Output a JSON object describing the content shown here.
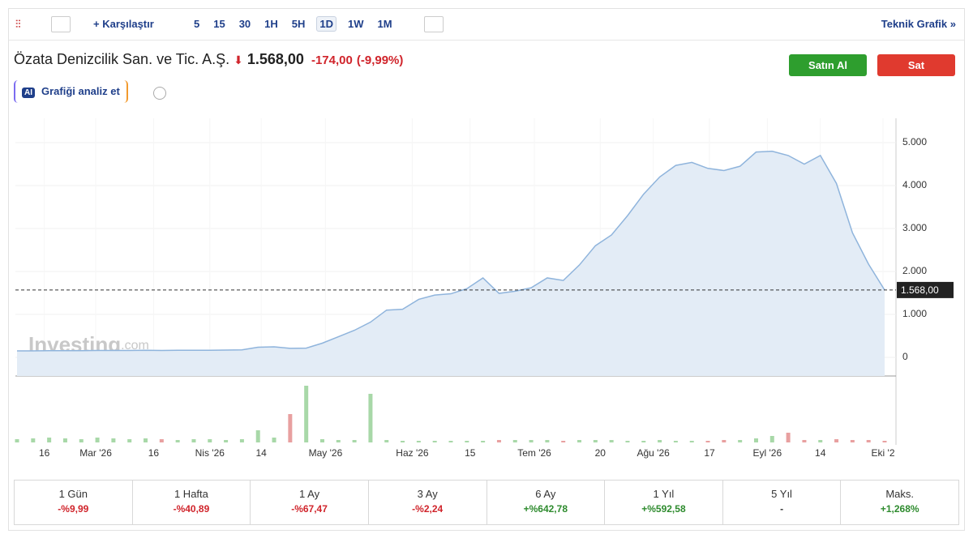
{
  "toolbar": {
    "compare": "Karşılaştır",
    "intervals": [
      "5",
      "15",
      "30",
      "1H",
      "5H",
      "1D",
      "1W",
      "1M"
    ],
    "active_interval": "1D",
    "technical": "Teknik Grafik »"
  },
  "header": {
    "name": "Özata Denizcilik San. ve Tic. A.Ş.",
    "price": "1.568,00",
    "change": "-174,00",
    "change_pct": "(-9,99%)",
    "buy": "Satın Al",
    "sell": "Sat",
    "ai": "AI",
    "analyze": "Grafiği analiz et"
  },
  "watermark": {
    "brand": "Investing",
    "suffix": ".com"
  },
  "chart_data": {
    "type": "area",
    "color": "#8fb4dc",
    "fill": "#e3ecf6",
    "values": [
      150,
      150,
      155,
      155,
      155,
      160,
      160,
      160,
      165,
      160,
      165,
      165,
      165,
      170,
      175,
      235,
      245,
      210,
      215,
      330,
      480,
      630,
      820,
      1100,
      1120,
      1350,
      1450,
      1480,
      1600,
      1850,
      1490,
      1540,
      1620,
      1850,
      1790,
      2150,
      2600,
      2850,
      3300,
      3800,
      4200,
      4470,
      4540,
      4400,
      4350,
      4450,
      4780,
      4800,
      4700,
      4500,
      4700,
      4050,
      2900,
      2170,
      1568
    ],
    "volumes": [
      4,
      5,
      6,
      5,
      4,
      6,
      5,
      4,
      5,
      4,
      3,
      4,
      4,
      3,
      4,
      15,
      6,
      35,
      70,
      4,
      3,
      3,
      60,
      3,
      2,
      2,
      2,
      2,
      2,
      2,
      3,
      3,
      3,
      3,
      2,
      3,
      3,
      3,
      2,
      2,
      3,
      2,
      2,
      2,
      3,
      3,
      5,
      8,
      12,
      3,
      3,
      4,
      3,
      3,
      2
    ],
    "xlim": [
      0,
      54
    ],
    "ylim": [
      -434,
      5566
    ],
    "yticks": [
      {
        "value": 5000,
        "label": "5.000"
      },
      {
        "value": 4000,
        "label": "4.000"
      },
      {
        "value": 3000,
        "label": "3.000"
      },
      {
        "value": 2000,
        "label": "2.000"
      },
      {
        "value": 1000,
        "label": "1.000"
      },
      0
    ],
    "xticks": [
      {
        "value": 1.7,
        "label": "16"
      },
      {
        "value": 4.9,
        "label": "Mar '26"
      },
      {
        "value": 8.5,
        "label": "16"
      },
      {
        "value": 12,
        "label": "Nis '26"
      },
      {
        "value": 15.2,
        "label": "14"
      },
      {
        "value": 19.2,
        "label": "May '26"
      },
      {
        "value": 24.6,
        "label": "Haz '26"
      },
      {
        "value": 28.2,
        "label": "15"
      },
      {
        "value": 32.2,
        "label": "Tem '26"
      },
      {
        "value": 36.3,
        "label": "20"
      },
      {
        "value": 39.6,
        "label": "Ağu '26"
      },
      {
        "value": 43.1,
        "label": "17"
      },
      {
        "value": 46.7,
        "label": "Eyl '26"
      },
      {
        "value": 50,
        "label": "14"
      },
      {
        "value": 53.9,
        "label": "Eki '2"
      }
    ],
    "last_price": {
      "value": 1568,
      "label": "1.568,00"
    }
  },
  "performance": [
    {
      "period": "1 Gün",
      "change": "-%9,99"
    },
    {
      "period": "1 Hafta",
      "change": "-%40,89"
    },
    {
      "period": "1 Ay",
      "change": "-%67,47"
    },
    {
      "period": "3 Ay",
      "change": "-%2,24"
    },
    {
      "period": "6 Ay",
      "change": "+%642,78"
    },
    {
      "period": "1 Yıl",
      "change": "+%592,58"
    },
    {
      "period": "5 Yıl",
      "change": "-"
    },
    {
      "period": "Maks.",
      "change": "+1,268%"
    }
  ]
}
